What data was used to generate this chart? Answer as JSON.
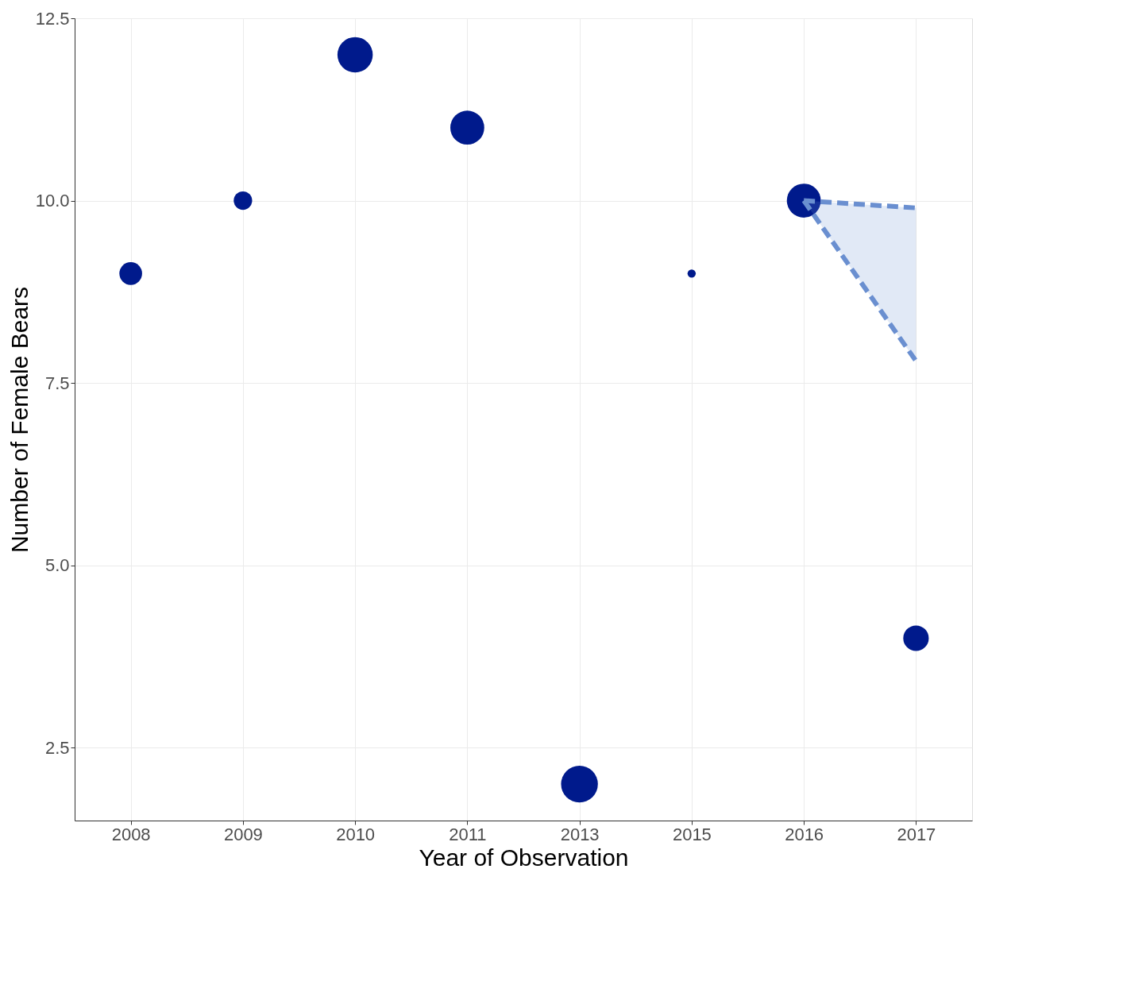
{
  "chart_data": {
    "type": "bubble",
    "xlabel": "Year of Observation",
    "ylabel": "Number of Female Bears",
    "categories": [
      "2008",
      "2009",
      "2010",
      "2011",
      "2013",
      "2015",
      "2016",
      "2017"
    ],
    "ylim": [
      1.5,
      12.5
    ],
    "yticks": [
      {
        "value": 2.5,
        "label": "2.5"
      },
      {
        "value": 5,
        "label": "5.0"
      },
      {
        "value": 7.5,
        "label": "7.5"
      },
      {
        "value": 10,
        "label": "10.0"
      },
      {
        "value": 12.5,
        "label": "12.5"
      }
    ],
    "grid": true,
    "series": [
      {
        "color": "#001a8c",
        "values": [
          9,
          10,
          12,
          11,
          2,
          9,
          10,
          4
        ],
        "sizes": [
          0.38,
          0.25,
          0.92,
          0.85,
          1.0,
          0.05,
          0.85,
          0.48
        ]
      },
      {
        "type": "line",
        "color": "#6a8fd0",
        "line_style": "dashed",
        "values": [
          null,
          null,
          null,
          null,
          null,
          null,
          10,
          9.9
        ],
        "lower": [
          null,
          null,
          null,
          null,
          null,
          null,
          10,
          7.8
        ],
        "upper": [
          null,
          null,
          null,
          null,
          null,
          null,
          10,
          9.9
        ]
      },
      {
        "type": "line",
        "color": "#6a8fd0",
        "line_style": "dashed",
        "values": [
          null,
          null,
          null,
          null,
          null,
          null,
          10,
          7.8
        ]
      }
    ]
  }
}
